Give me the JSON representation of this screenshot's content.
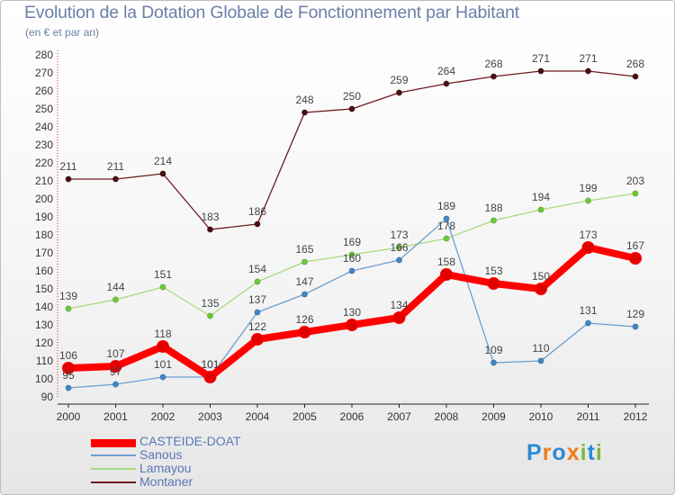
{
  "chart_data": {
    "type": "line",
    "title": "Evolution de la Dotation Globale de Fonctionnement par Habitant",
    "subtitle": "(en € et par an)",
    "categories": [
      "2000",
      "2001",
      "2002",
      "2003",
      "2004",
      "2005",
      "2006",
      "2007",
      "2008",
      "2009",
      "2010",
      "2011",
      "2012"
    ],
    "yticks": [
      90,
      100,
      110,
      120,
      130,
      140,
      150,
      160,
      170,
      180,
      190,
      200,
      210,
      220,
      230,
      240,
      250,
      260,
      270,
      280
    ],
    "ylim": [
      90,
      280
    ],
    "grid": false,
    "legend_position": "bottom-left",
    "series": [
      {
        "name": "Montaner",
        "color": "#6e1a1f",
        "marker": "#4a0f12",
        "width": "thin",
        "values": [
          211,
          211,
          214,
          183,
          186,
          248,
          250,
          259,
          264,
          268,
          271,
          271,
          268
        ]
      },
      {
        "name": "Lamayou",
        "color": "#a8db7c",
        "marker": "#6cc93a",
        "width": "thin",
        "values": [
          139,
          144,
          151,
          135,
          154,
          165,
          169,
          173,
          178,
          188,
          194,
          199,
          203
        ]
      },
      {
        "name": "Sanous",
        "color": "#6c9fd0",
        "marker": "#3f86c6",
        "width": "thin",
        "values": [
          95,
          97,
          101,
          101,
          137,
          147,
          160,
          166,
          189,
          109,
          110,
          131,
          129
        ]
      },
      {
        "name": "CASTEIDE-DOAT",
        "color": "#ff0000",
        "marker": "#e00000",
        "width": "thick",
        "values": [
          106,
          107,
          118,
          101,
          122,
          126,
          130,
          134,
          158,
          153,
          150,
          173,
          167
        ]
      }
    ]
  },
  "legend": {
    "items": [
      {
        "label": "CASTEIDE-DOAT",
        "color": "#ff0000"
      },
      {
        "label": "Sanous",
        "color": "#6c9fd0"
      },
      {
        "label": "Lamayou",
        "color": "#a8db7c"
      },
      {
        "label": "Montaner",
        "color": "#6e1a1f"
      }
    ]
  },
  "logo": {
    "letters": [
      "P",
      "r",
      "o",
      "x",
      "i",
      "t",
      "i"
    ],
    "colors": [
      "#2b8ad1",
      "#ef7d1a",
      "#2b8ad1",
      "#ef7d1a",
      "#7ab83a",
      "#2b8ad1",
      "#7ab83a"
    ]
  }
}
